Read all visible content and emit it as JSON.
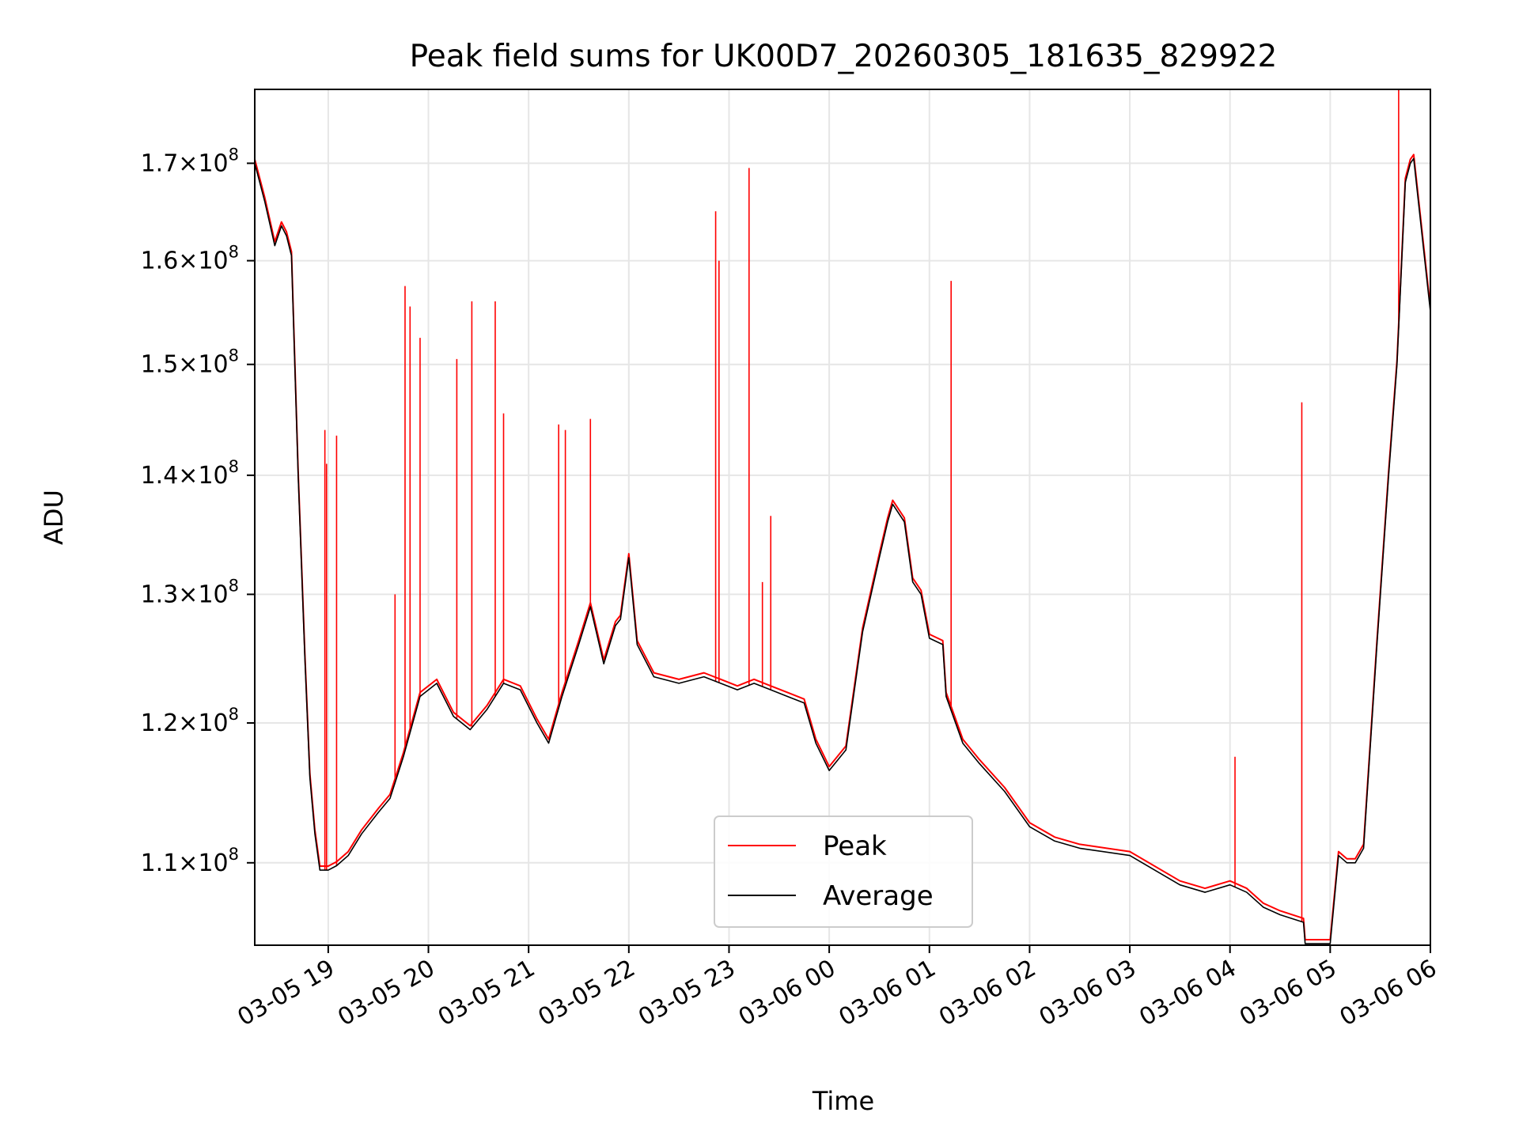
{
  "chart_data": {
    "type": "line",
    "title": "Peak field sums for UK00D7_20260305_181635_829922",
    "xlabel": "Time",
    "ylabel": "ADU",
    "y_scale": "log",
    "grid": true,
    "legend_position": "lower center",
    "x_range": [
      "2026-03-05 18:16",
      "2026-03-06 06:00"
    ],
    "ylim": [
      104500000,
      178000000
    ],
    "x_ticks": [
      {
        "value": "2026-03-05 19:00",
        "label": "03-05 19"
      },
      {
        "value": "2026-03-05 20:00",
        "label": "03-05 20"
      },
      {
        "value": "2026-03-05 21:00",
        "label": "03-05 21"
      },
      {
        "value": "2026-03-05 22:00",
        "label": "03-05 22"
      },
      {
        "value": "2026-03-05 23:00",
        "label": "03-05 23"
      },
      {
        "value": "2026-03-06 00:00",
        "label": "03-06 00"
      },
      {
        "value": "2026-03-06 01:00",
        "label": "03-06 01"
      },
      {
        "value": "2026-03-06 02:00",
        "label": "03-06 02"
      },
      {
        "value": "2026-03-06 03:00",
        "label": "03-06 03"
      },
      {
        "value": "2026-03-06 04:00",
        "label": "03-06 04"
      },
      {
        "value": "2026-03-06 05:00",
        "label": "03-06 05"
      },
      {
        "value": "2026-03-06 06:00",
        "label": "03-06 06"
      }
    ],
    "y_ticks": [
      {
        "value": 110000000,
        "mantissa": "1.1",
        "exponent": "8"
      },
      {
        "value": 120000000,
        "mantissa": "1.2",
        "exponent": "8"
      },
      {
        "value": 130000000,
        "mantissa": "1.3",
        "exponent": "8"
      },
      {
        "value": 140000000,
        "mantissa": "1.4",
        "exponent": "8"
      },
      {
        "value": 150000000,
        "mantissa": "1.5",
        "exponent": "8"
      },
      {
        "value": 160000000,
        "mantissa": "1.6",
        "exponent": "8"
      },
      {
        "value": 170000000,
        "mantissa": "1.7",
        "exponent": "8"
      }
    ],
    "series": [
      {
        "name": "Average",
        "color": "#000000",
        "x": [
          "2026-03-05 18:16",
          "2026-03-05 18:22",
          "2026-03-05 18:28",
          "2026-03-05 18:32",
          "2026-03-05 18:35",
          "2026-03-05 18:38",
          "2026-03-05 18:42",
          "2026-03-05 18:46",
          "2026-03-05 18:49",
          "2026-03-05 18:52",
          "2026-03-05 18:55",
          "2026-03-05 19:00",
          "2026-03-05 19:05",
          "2026-03-05 19:12",
          "2026-03-05 19:20",
          "2026-03-05 19:30",
          "2026-03-05 19:37",
          "2026-03-05 19:45",
          "2026-03-05 19:55",
          "2026-03-05 20:05",
          "2026-03-05 20:15",
          "2026-03-05 20:25",
          "2026-03-05 20:35",
          "2026-03-05 20:45",
          "2026-03-05 20:55",
          "2026-03-05 21:05",
          "2026-03-05 21:12",
          "2026-03-05 21:20",
          "2026-03-05 21:30",
          "2026-03-05 21:37",
          "2026-03-05 21:45",
          "2026-03-05 21:52",
          "2026-03-05 21:55",
          "2026-03-05 22:00",
          "2026-03-05 22:05",
          "2026-03-05 22:15",
          "2026-03-05 22:30",
          "2026-03-05 22:45",
          "2026-03-05 22:55",
          "2026-03-05 23:05",
          "2026-03-05 23:15",
          "2026-03-05 23:25",
          "2026-03-05 23:35",
          "2026-03-05 23:45",
          "2026-03-05 23:52",
          "2026-03-06 00:00",
          "2026-03-06 00:10",
          "2026-03-06 00:20",
          "2026-03-06 00:30",
          "2026-03-06 00:35",
          "2026-03-06 00:38",
          "2026-03-06 00:45",
          "2026-03-06 00:50",
          "2026-03-06 00:55",
          "2026-03-06 01:00",
          "2026-03-06 01:08",
          "2026-03-06 01:10",
          "2026-03-06 01:20",
          "2026-03-06 01:30",
          "2026-03-06 01:45",
          "2026-03-06 02:00",
          "2026-03-06 02:15",
          "2026-03-06 02:30",
          "2026-03-06 03:00",
          "2026-03-06 03:30",
          "2026-03-06 03:45",
          "2026-03-06 04:00",
          "2026-03-06 04:10",
          "2026-03-06 04:20",
          "2026-03-06 04:30",
          "2026-03-06 04:44",
          "2026-03-06 04:45",
          "2026-03-06 04:55",
          "2026-03-06 05:00",
          "2026-03-06 05:05",
          "2026-03-06 05:10",
          "2026-03-06 05:15",
          "2026-03-06 05:20",
          "2026-03-06 05:28",
          "2026-03-06 05:35",
          "2026-03-06 05:40",
          "2026-03-06 05:45",
          "2026-03-06 05:48",
          "2026-03-06 05:50",
          "2026-03-06 06:00"
        ],
        "y": [
          170000000,
          166000000,
          161500000,
          163500000,
          162500000,
          160500000,
          140000000,
          125000000,
          116000000,
          112000000,
          109500000,
          109500000,
          109800000,
          110500000,
          112000000,
          113500000,
          114500000,
          117500000,
          122000000,
          123000000,
          120500000,
          119500000,
          121000000,
          123000000,
          122500000,
          120000000,
          118500000,
          122000000,
          126000000,
          129000000,
          124500000,
          127500000,
          128000000,
          133000000,
          126000000,
          123500000,
          123000000,
          123500000,
          123000000,
          122500000,
          123000000,
          122500000,
          122000000,
          121500000,
          118500000,
          116500000,
          118000000,
          127000000,
          133000000,
          136000000,
          137500000,
          136000000,
          131000000,
          130000000,
          126500000,
          126000000,
          122000000,
          118500000,
          117000000,
          115000000,
          112500000,
          111500000,
          111000000,
          110500000,
          108500000,
          108000000,
          108500000,
          108000000,
          107000000,
          106500000,
          106000000,
          104600000,
          104600000,
          104600000,
          110500000,
          110000000,
          110000000,
          111000000,
          126000000,
          140000000,
          150000000,
          168000000,
          170000000,
          170500000,
          155000000
        ]
      },
      {
        "name": "Peak",
        "color": "#ff0000",
        "spikes": [
          {
            "x": "2026-03-05 18:58",
            "y": 144000000
          },
          {
            "x": "2026-03-05 18:59",
            "y": 141000000
          },
          {
            "x": "2026-03-05 19:05",
            "y": 143500000
          },
          {
            "x": "2026-03-05 19:40",
            "y": 130000000
          },
          {
            "x": "2026-03-05 19:46",
            "y": 157500000
          },
          {
            "x": "2026-03-05 19:49",
            "y": 155500000
          },
          {
            "x": "2026-03-05 19:55",
            "y": 152500000
          },
          {
            "x": "2026-03-05 20:17",
            "y": 150500000
          },
          {
            "x": "2026-03-05 20:26",
            "y": 156000000
          },
          {
            "x": "2026-03-05 20:40",
            "y": 156000000
          },
          {
            "x": "2026-03-05 20:45",
            "y": 145500000
          },
          {
            "x": "2026-03-05 21:18",
            "y": 144500000
          },
          {
            "x": "2026-03-05 21:22",
            "y": 144000000
          },
          {
            "x": "2026-03-05 21:37",
            "y": 145000000
          },
          {
            "x": "2026-03-05 22:52",
            "y": 165000000
          },
          {
            "x": "2026-03-05 22:54",
            "y": 160000000
          },
          {
            "x": "2026-03-05 23:12",
            "y": 169500000
          },
          {
            "x": "2026-03-05 23:20",
            "y": 131000000
          },
          {
            "x": "2026-03-05 23:25",
            "y": 136500000
          },
          {
            "x": "2026-03-06 01:13",
            "y": 158000000
          },
          {
            "x": "2026-03-06 04:03",
            "y": 117500000
          },
          {
            "x": "2026-03-06 04:43",
            "y": 146500000
          },
          {
            "x": "2026-03-06 05:41",
            "y": 178000000
          }
        ]
      }
    ]
  }
}
